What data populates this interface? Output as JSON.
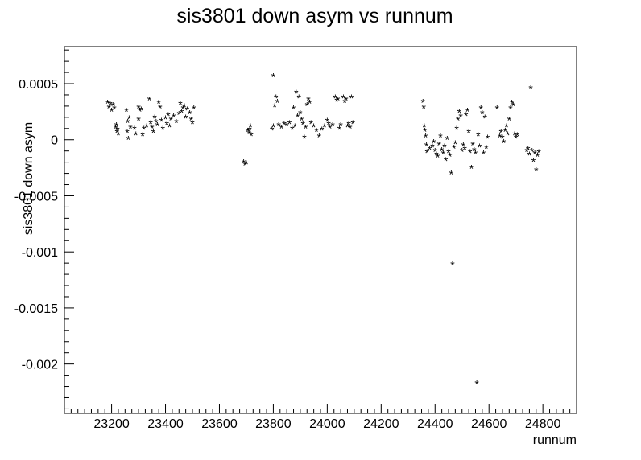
{
  "chart_data": {
    "type": "scatter",
    "title": "sis3801 down asym vs runnum",
    "xlabel": "runnum",
    "ylabel": "sis3801 down asym",
    "xlim": [
      23025,
      24925
    ],
    "ylim": [
      -0.00244,
      0.00083
    ],
    "xticks": [
      23200,
      23400,
      23600,
      23800,
      24000,
      24200,
      24400,
      24600,
      24800
    ],
    "xtick_labels": [
      "23200",
      "23400",
      "23600",
      "23800",
      "24000",
      "24200",
      "24400",
      "24600",
      "24800"
    ],
    "yticks": [
      0.0005,
      0,
      -0.0005,
      -0.001,
      -0.0015,
      -0.002
    ],
    "ytick_labels": [
      "0.0005",
      "0",
      "-0.0005",
      "-0.001",
      "-0.0015",
      "-0.002"
    ],
    "grid": false,
    "legend": "none",
    "marker": "*",
    "points": [
      [
        23185,
        0.00033
      ],
      [
        23190,
        0.00029
      ],
      [
        23195,
        0.00032
      ],
      [
        23200,
        0.00026
      ],
      [
        23205,
        0.00031
      ],
      [
        23210,
        0.00028
      ],
      [
        23215,
        0.00011
      ],
      [
        23220,
        7e-05
      ],
      [
        23225,
        5e-05
      ],
      [
        23218,
        0.00013
      ],
      [
        23222,
        9e-05
      ],
      [
        23255,
        0.00026
      ],
      [
        23260,
        0.00016
      ],
      [
        23265,
        0.00019
      ],
      [
        23258,
        7e-05
      ],
      [
        23270,
        0.00011
      ],
      [
        23262,
        1e-05
      ],
      [
        23285,
        0.0001
      ],
      [
        23290,
        5e-05
      ],
      [
        23300,
        0.00029
      ],
      [
        23305,
        0.00026
      ],
      [
        23310,
        0.00027
      ],
      [
        23300,
        0.00018
      ],
      [
        23315,
        4e-05
      ],
      [
        23320,
        0.0001
      ],
      [
        23330,
        0.00012
      ],
      [
        23340,
        0.00036
      ],
      [
        23345,
        0.00015
      ],
      [
        23350,
        0.00011
      ],
      [
        23355,
        7e-05
      ],
      [
        23360,
        0.0002
      ],
      [
        23365,
        0.00016
      ],
      [
        23370,
        0.00013
      ],
      [
        23375,
        0.00033
      ],
      [
        23380,
        0.00029
      ],
      [
        23385,
        0.00017
      ],
      [
        23390,
        0.0001
      ],
      [
        23400,
        0.00019
      ],
      [
        23405,
        0.00014
      ],
      [
        23410,
        0.00022
      ],
      [
        23415,
        0.00012
      ],
      [
        23420,
        0.00018
      ],
      [
        23430,
        0.00021
      ],
      [
        23440,
        0.00016
      ],
      [
        23450,
        0.00023
      ],
      [
        23455,
        0.00032
      ],
      [
        23460,
        0.00025
      ],
      [
        23465,
        0.00028
      ],
      [
        23470,
        0.0003
      ],
      [
        23475,
        0.0002
      ],
      [
        23480,
        0.00027
      ],
      [
        23490,
        0.00024
      ],
      [
        23495,
        0.00018
      ],
      [
        23500,
        0.00015
      ],
      [
        23505,
        0.00028
      ],
      [
        23690,
        -0.0002
      ],
      [
        23695,
        -0.00022
      ],
      [
        23700,
        -0.00021
      ],
      [
        23705,
        8e-05
      ],
      [
        23710,
        6e-05
      ],
      [
        23715,
        0.00012
      ],
      [
        23718,
        4e-05
      ],
      [
        23712,
        9e-05
      ],
      [
        23800,
        0.00057
      ],
      [
        23805,
        0.0003
      ],
      [
        23810,
        0.00038
      ],
      [
        23815,
        0.00034
      ],
      [
        23795,
        9e-05
      ],
      [
        23800,
        0.00012
      ],
      [
        23820,
        0.00013
      ],
      [
        23830,
        0.00011
      ],
      [
        23840,
        0.00014
      ],
      [
        23850,
        0.00013
      ],
      [
        23860,
        0.00015
      ],
      [
        23870,
        0.0001
      ],
      [
        23875,
        0.00028
      ],
      [
        23880,
        0.00012
      ],
      [
        23885,
        0.00042
      ],
      [
        23890,
        0.00021
      ],
      [
        23895,
        0.00038
      ],
      [
        23900,
        0.00024
      ],
      [
        23905,
        0.00018
      ],
      [
        23910,
        0.00014
      ],
      [
        23915,
        2e-05
      ],
      [
        23920,
        0.00011
      ],
      [
        23925,
        0.00031
      ],
      [
        23930,
        0.00036
      ],
      [
        23935,
        0.00033
      ],
      [
        23940,
        0.00015
      ],
      [
        23950,
        0.00012
      ],
      [
        23960,
        8e-05
      ],
      [
        23970,
        3e-05
      ],
      [
        23980,
        9e-05
      ],
      [
        23990,
        0.00012
      ],
      [
        24000,
        0.00017
      ],
      [
        24005,
        0.00014
      ],
      [
        24010,
        0.00011
      ],
      [
        24020,
        0.00013
      ],
      [
        24030,
        0.00038
      ],
      [
        24035,
        0.00035
      ],
      [
        24040,
        0.00036
      ],
      [
        24045,
        0.0001
      ],
      [
        24050,
        0.00013
      ],
      [
        24060,
        0.00038
      ],
      [
        24065,
        0.00034
      ],
      [
        24070,
        0.00036
      ],
      [
        24075,
        0.00012
      ],
      [
        24080,
        0.00014
      ],
      [
        24085,
        0.00011
      ],
      [
        24090,
        0.00038
      ],
      [
        24095,
        0.00015
      ],
      [
        24355,
        0.00034
      ],
      [
        24358,
        0.00029
      ],
      [
        24360,
        0.00012
      ],
      [
        24362,
        8e-05
      ],
      [
        24365,
        3e-05
      ],
      [
        24368,
        -5e-05
      ],
      [
        24370,
        -0.00011
      ],
      [
        24380,
        -8e-05
      ],
      [
        24390,
        -6e-05
      ],
      [
        24395,
        -2e-05
      ],
      [
        24400,
        -0.0001
      ],
      [
        24405,
        -0.00013
      ],
      [
        24410,
        -0.00015
      ],
      [
        24415,
        -4e-05
      ],
      [
        24420,
        3e-05
      ],
      [
        24425,
        -9e-05
      ],
      [
        24430,
        -0.00012
      ],
      [
        24435,
        -6e-05
      ],
      [
        24440,
        -0.00018
      ],
      [
        24445,
        1e-05
      ],
      [
        24450,
        -0.00011
      ],
      [
        24455,
        -0.00014
      ],
      [
        24460,
        -0.0003
      ],
      [
        24465,
        -0.00111
      ],
      [
        24470,
        -7e-05
      ],
      [
        24475,
        -3e-05
      ],
      [
        24480,
        0.0001
      ],
      [
        24485,
        0.00018
      ],
      [
        24490,
        0.00025
      ],
      [
        24495,
        0.00021
      ],
      [
        24500,
        -0.0001
      ],
      [
        24505,
        -5e-05
      ],
      [
        24510,
        -8e-05
      ],
      [
        24515,
        0.00022
      ],
      [
        24520,
        0.00026
      ],
      [
        24525,
        7e-05
      ],
      [
        24530,
        -0.00011
      ],
      [
        24535,
        -0.00025
      ],
      [
        24540,
        -4e-05
      ],
      [
        24545,
        -9e-05
      ],
      [
        24550,
        -0.00012
      ],
      [
        24555,
        -0.00217
      ],
      [
        24560,
        4e-05
      ],
      [
        24565,
        -6e-05
      ],
      [
        24570,
        0.00028
      ],
      [
        24575,
        0.00024
      ],
      [
        24580,
        -0.00012
      ],
      [
        24585,
        0.0002
      ],
      [
        24590,
        -7e-05
      ],
      [
        24595,
        2e-05
      ],
      [
        24630,
        0.00028
      ],
      [
        24640,
        3e-05
      ],
      [
        24645,
        7e-05
      ],
      [
        24650,
        2e-05
      ],
      [
        24655,
        -2e-05
      ],
      [
        24660,
        8e-05
      ],
      [
        24665,
        0.00012
      ],
      [
        24670,
        5e-05
      ],
      [
        24675,
        0.00018
      ],
      [
        24680,
        0.00028
      ],
      [
        24685,
        0.00033
      ],
      [
        24690,
        0.00031
      ],
      [
        24695,
        5e-05
      ],
      [
        24700,
        2e-05
      ],
      [
        24705,
        4e-05
      ],
      [
        24740,
        -0.0001
      ],
      [
        24745,
        -8e-05
      ],
      [
        24750,
        -0.00013
      ],
      [
        24755,
        0.00046
      ],
      [
        24760,
        -0.0001
      ],
      [
        24765,
        -0.00019
      ],
      [
        24770,
        -0.00012
      ],
      [
        24775,
        -0.00027
      ],
      [
        24780,
        -0.00014
      ],
      [
        24785,
        -0.00011
      ]
    ]
  }
}
